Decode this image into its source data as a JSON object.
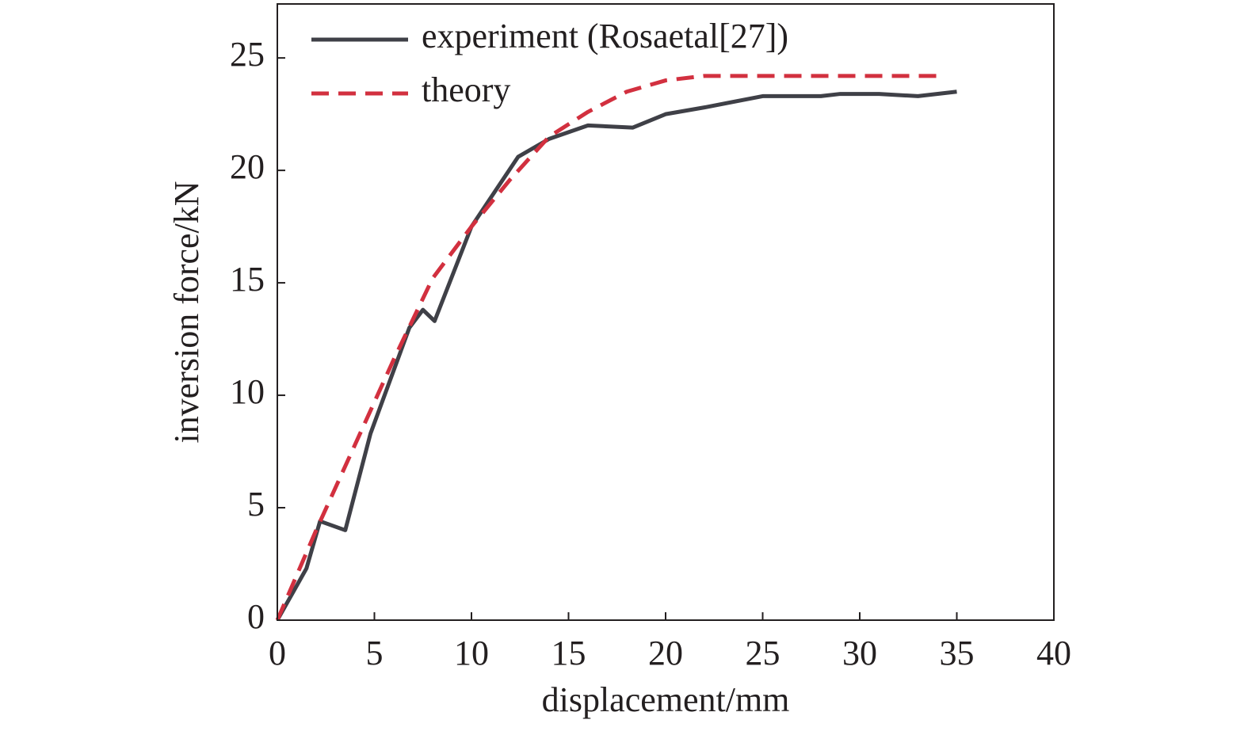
{
  "chart_data": {
    "type": "line",
    "xlabel": "displacement/mm",
    "ylabel": "inversion force/kN",
    "xlim": [
      0,
      40
    ],
    "xticks": [
      0,
      5,
      10,
      15,
      20,
      25,
      30,
      35,
      40
    ],
    "ylim": [
      0,
      27.4
    ],
    "yticks": [
      0,
      5,
      10,
      15,
      20,
      25
    ],
    "legend": "upper left",
    "series": [
      {
        "name": "experiment (Rosaetal[27])",
        "color": "#3f4047",
        "dash": "solid",
        "x": [
          0,
          1.5,
          2.2,
          3.5,
          4.8,
          6.8,
          7.5,
          8.1,
          10,
          12.4,
          14,
          16,
          18.3,
          20,
          22,
          25,
          28,
          29,
          31,
          33,
          35
        ],
        "values": [
          0,
          2.3,
          4.4,
          4.0,
          8.3,
          13.0,
          13.8,
          13.3,
          17.5,
          20.6,
          21.4,
          22.0,
          21.9,
          22.5,
          22.8,
          23.3,
          23.3,
          23.4,
          23.4,
          23.3,
          23.5
        ]
      },
      {
        "name": "theory",
        "color": "#d2303f",
        "dash": "dashed",
        "x": [
          0,
          2,
          4,
          6,
          8,
          10,
          12,
          14,
          16,
          18,
          20,
          22,
          25,
          30,
          34
        ],
        "values": [
          0,
          4.0,
          7.8,
          11.6,
          15.2,
          17.5,
          19.6,
          21.5,
          22.6,
          23.5,
          24.0,
          24.2,
          24.2,
          24.2,
          24.2
        ]
      }
    ]
  }
}
